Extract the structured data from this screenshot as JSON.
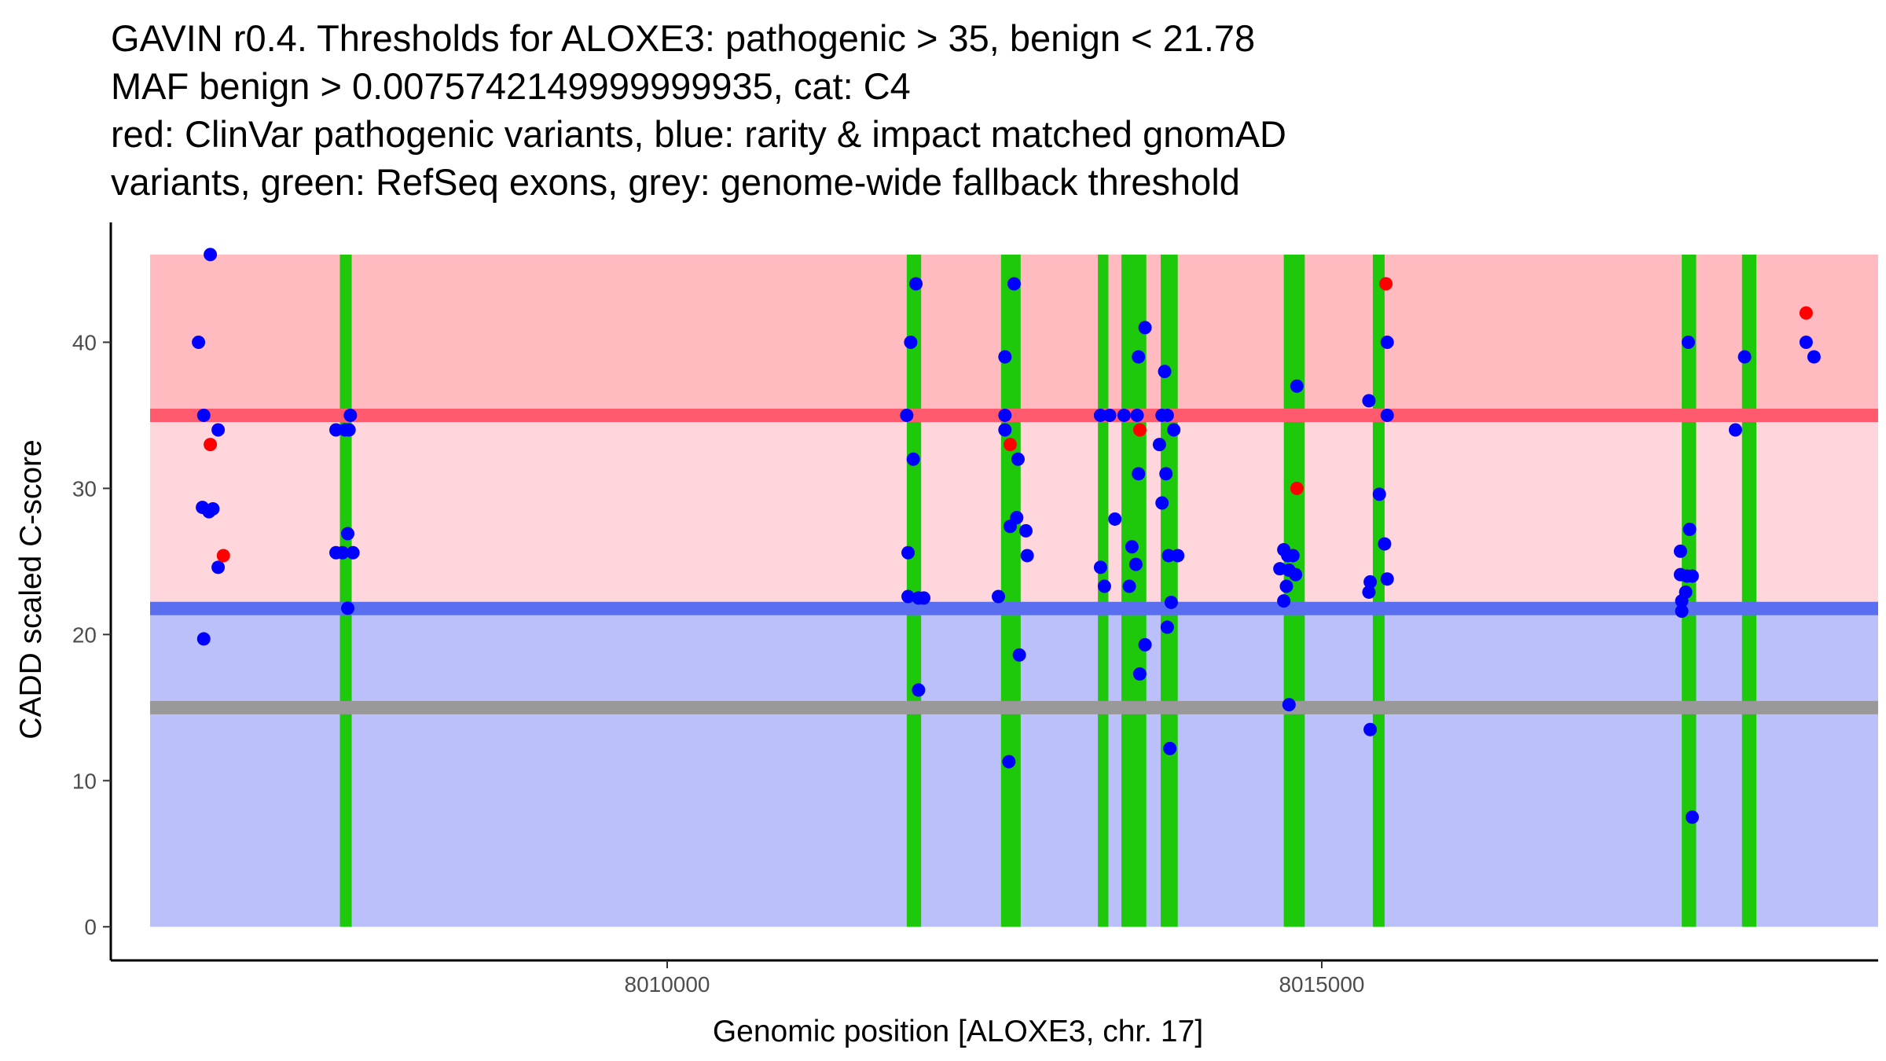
{
  "chart_data": {
    "type": "scatter",
    "title_lines": [
      "GAVIN r0.4. Thresholds for ALOXE3: pathogenic > 35, benign < 21.78",
      "MAF benign > 0.0075742149999999935, cat: C4",
      "red: ClinVar pathogenic variants, blue: rarity & impact matched gnomAD",
      "variants, green: RefSeq exons, grey: genome-wide fallback threshold"
    ],
    "xlabel": "Genomic position [ALOXE3, chr. 17]",
    "ylabel": "CADD scaled C-score",
    "xlim": [
      8005750,
      8019250
    ],
    "ylim": [
      -2.3,
      48.2
    ],
    "x_ticks": [
      {
        "value": 8010000,
        "label": "8010000"
      },
      {
        "value": 8015000,
        "label": "8015000"
      }
    ],
    "y_ticks": [
      {
        "value": 0,
        "label": "0"
      },
      {
        "value": 10,
        "label": "10"
      },
      {
        "value": 20,
        "label": "20"
      },
      {
        "value": 30,
        "label": "30"
      },
      {
        "value": 40,
        "label": "40"
      }
    ],
    "colors": {
      "pathogenic_region": "#ffbbc0",
      "vus_region": "#ffd6dc",
      "benign_region": "#bbc0fa",
      "pathogenic_line": "#ff5a6e",
      "benign_line": "#5a6ef0",
      "fallback_line": "#999999",
      "exon": "#1ec80a",
      "clinvar": "#ff0000",
      "gnomad": "#0000ff"
    },
    "regions": {
      "x_start": 8006050,
      "x_end": 8019250,
      "y_bottom": 0,
      "y_top": 46,
      "pathogenic_threshold": 35,
      "benign_threshold": 21.78,
      "fallback_threshold": 15
    },
    "exons": [
      [
        8007500,
        8007590
      ],
      [
        8011830,
        8011940
      ],
      [
        8012550,
        8012700
      ],
      [
        8013290,
        8013370
      ],
      [
        8013470,
        8013660
      ],
      [
        8013770,
        8013900
      ],
      [
        8014710,
        8014870
      ],
      [
        8015390,
        8015480
      ],
      [
        8017750,
        8017860
      ],
      [
        8018210,
        8018320
      ]
    ],
    "series": [
      {
        "name": "ClinVar pathogenic variants",
        "color": "#ff0000",
        "points": [
          [
            8006510,
            33
          ],
          [
            8006610,
            25.4
          ],
          [
            8012620,
            33
          ],
          [
            8013610,
            34
          ],
          [
            8014810,
            30
          ],
          [
            8015490,
            44
          ],
          [
            8018700,
            42
          ]
        ]
      },
      {
        "name": "gnomAD matched variants",
        "color": "#0000ff",
        "points": [
          [
            8006510,
            46
          ],
          [
            8006420,
            40
          ],
          [
            8006460,
            35
          ],
          [
            8006570,
            34
          ],
          [
            8006450,
            28.7
          ],
          [
            8006500,
            28.4
          ],
          [
            8006530,
            28.6
          ],
          [
            8006570,
            24.6
          ],
          [
            8006460,
            19.7
          ],
          [
            8007470,
            34
          ],
          [
            8007540,
            34
          ],
          [
            8007580,
            35
          ],
          [
            8007570,
            34
          ],
          [
            8007470,
            25.6
          ],
          [
            8007520,
            25.6
          ],
          [
            8007560,
            26.9
          ],
          [
            8007600,
            25.6
          ],
          [
            8007560,
            21.8
          ],
          [
            8011830,
            35
          ],
          [
            8011860,
            40
          ],
          [
            8011900,
            44
          ],
          [
            8011880,
            32
          ],
          [
            8011840,
            25.6
          ],
          [
            8011840,
            22.6
          ],
          [
            8011920,
            22.5
          ],
          [
            8011960,
            22.5
          ],
          [
            8011920,
            16.2
          ],
          [
            8012580,
            39
          ],
          [
            8012580,
            35
          ],
          [
            8012580,
            34
          ],
          [
            8012650,
            44
          ],
          [
            8012620,
            27.4
          ],
          [
            8012670,
            28
          ],
          [
            8012680,
            32
          ],
          [
            8012740,
            27.1
          ],
          [
            8012750,
            25.4
          ],
          [
            8012530,
            22.6
          ],
          [
            8012690,
            18.6
          ],
          [
            8012610,
            11.3
          ],
          [
            8013310,
            35
          ],
          [
            8013380,
            35
          ],
          [
            8013490,
            35
          ],
          [
            8013310,
            24.6
          ],
          [
            8013340,
            23.3
          ],
          [
            8013420,
            27.9
          ],
          [
            8013600,
            39
          ],
          [
            8013590,
            35
          ],
          [
            8013650,
            41
          ],
          [
            8013550,
            26
          ],
          [
            8013530,
            23.3
          ],
          [
            8013580,
            24.8
          ],
          [
            8013600,
            31
          ],
          [
            8013610,
            17.3
          ],
          [
            8013650,
            19.3
          ],
          [
            8013780,
            35
          ],
          [
            8013820,
            35
          ],
          [
            8013760,
            33
          ],
          [
            8013800,
            38
          ],
          [
            8013810,
            31
          ],
          [
            8013780,
            29
          ],
          [
            8013870,
            34
          ],
          [
            8013830,
            25.4
          ],
          [
            8013900,
            25.4
          ],
          [
            8013850,
            22.2
          ],
          [
            8013820,
            20.5
          ],
          [
            8013840,
            12.2
          ],
          [
            8014680,
            24.5
          ],
          [
            8014710,
            25.8
          ],
          [
            8014740,
            25.4
          ],
          [
            8014750,
            24.4
          ],
          [
            8014780,
            25.4
          ],
          [
            8014800,
            24.1
          ],
          [
            8014730,
            23.3
          ],
          [
            8014710,
            22.3
          ],
          [
            8014750,
            15.2
          ],
          [
            8014810,
            37
          ],
          [
            8015360,
            36
          ],
          [
            8015370,
            23.6
          ],
          [
            8015360,
            22.9
          ],
          [
            8015440,
            29.6
          ],
          [
            8015480,
            26.2
          ],
          [
            8015500,
            23.8
          ],
          [
            8015500,
            35
          ],
          [
            8015500,
            40
          ],
          [
            8015370,
            13.5
          ],
          [
            8017740,
            25.7
          ],
          [
            8017740,
            24.1
          ],
          [
            8017790,
            24
          ],
          [
            8017800,
            40
          ],
          [
            8017810,
            27.2
          ],
          [
            8017830,
            24
          ],
          [
            8017780,
            22.9
          ],
          [
            8017750,
            22.3
          ],
          [
            8017750,
            21.6
          ],
          [
            8017830,
            7.5
          ],
          [
            8018160,
            34
          ],
          [
            8018230,
            39
          ],
          [
            8018700,
            40
          ],
          [
            8018760,
            39
          ]
        ]
      }
    ]
  }
}
